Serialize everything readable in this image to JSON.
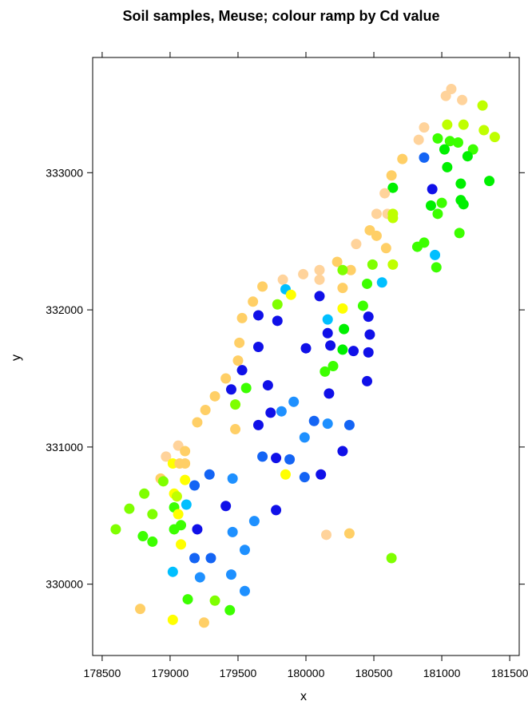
{
  "chart_data": {
    "type": "scatter",
    "title": "Soil samples, Meuse; colour ramp by Cd value",
    "xlabel": "x",
    "ylabel": "y",
    "xlim": [
      178430,
      181570
    ],
    "ylim": [
      329480,
      333840
    ],
    "x_ticks": [
      178500,
      179000,
      179500,
      180000,
      180500,
      181000,
      181500
    ],
    "y_ticks": [
      330000,
      331000,
      332000,
      333000
    ],
    "x_tick_labels": [
      "178500",
      "179000",
      "179500",
      "180000",
      "180500",
      "181000",
      "181500"
    ],
    "y_tick_labels": [
      "330000",
      "331000",
      "332000",
      "333000"
    ],
    "grid": false,
    "legend": "none",
    "points": [
      {
        "x": 181070,
        "y": 333610,
        "color": "#FFD39B"
      },
      {
        "x": 181030,
        "y": 333560,
        "color": "#FFD39B"
      },
      {
        "x": 181150,
        "y": 333530,
        "color": "#FFD39B"
      },
      {
        "x": 181300,
        "y": 333490,
        "color": "#BFFF00"
      },
      {
        "x": 180870,
        "y": 333330,
        "color": "#FFD39B"
      },
      {
        "x": 181040,
        "y": 333350,
        "color": "#BFFF00"
      },
      {
        "x": 181160,
        "y": 333350,
        "color": "#BFFF00"
      },
      {
        "x": 181310,
        "y": 333310,
        "color": "#BFFF00"
      },
      {
        "x": 180830,
        "y": 333240,
        "color": "#FFD39B"
      },
      {
        "x": 180970,
        "y": 333250,
        "color": "#3CFF00"
      },
      {
        "x": 181060,
        "y": 333230,
        "color": "#3CFF00"
      },
      {
        "x": 181120,
        "y": 333220,
        "color": "#3CFF00"
      },
      {
        "x": 181390,
        "y": 333260,
        "color": "#BFFF00"
      },
      {
        "x": 180710,
        "y": 333100,
        "color": "#FFCF66"
      },
      {
        "x": 180870,
        "y": 333110,
        "color": "#1464F4"
      },
      {
        "x": 181020,
        "y": 333170,
        "color": "#00F000"
      },
      {
        "x": 181230,
        "y": 333170,
        "color": "#3CFF00"
      },
      {
        "x": 181190,
        "y": 333120,
        "color": "#00F000"
      },
      {
        "x": 181040,
        "y": 333040,
        "color": "#00F000"
      },
      {
        "x": 181350,
        "y": 332940,
        "color": "#00F000"
      },
      {
        "x": 180630,
        "y": 332980,
        "color": "#FFCF66"
      },
      {
        "x": 180640,
        "y": 332890,
        "color": "#00F000"
      },
      {
        "x": 180930,
        "y": 332880,
        "color": "#1010E8"
      },
      {
        "x": 181140,
        "y": 332920,
        "color": "#00F000"
      },
      {
        "x": 180580,
        "y": 332850,
        "color": "#FFD39B"
      },
      {
        "x": 181140,
        "y": 332800,
        "color": "#00F000"
      },
      {
        "x": 180520,
        "y": 332700,
        "color": "#FFD39B"
      },
      {
        "x": 180600,
        "y": 332700,
        "color": "#FFD39B"
      },
      {
        "x": 180640,
        "y": 332700,
        "color": "#BFFF00"
      },
      {
        "x": 180640,
        "y": 332670,
        "color": "#BFFF00"
      },
      {
        "x": 180920,
        "y": 332760,
        "color": "#00F000"
      },
      {
        "x": 181000,
        "y": 332780,
        "color": "#3CFF00"
      },
      {
        "x": 181160,
        "y": 332770,
        "color": "#00F000"
      },
      {
        "x": 180970,
        "y": 332700,
        "color": "#3CFF00"
      },
      {
        "x": 180470,
        "y": 332580,
        "color": "#FFCF66"
      },
      {
        "x": 180520,
        "y": 332540,
        "color": "#FFCF66"
      },
      {
        "x": 181130,
        "y": 332560,
        "color": "#3CFF00"
      },
      {
        "x": 180370,
        "y": 332480,
        "color": "#FFD39B"
      },
      {
        "x": 180590,
        "y": 332450,
        "color": "#FFCF66"
      },
      {
        "x": 180870,
        "y": 332490,
        "color": "#3CFF00"
      },
      {
        "x": 180820,
        "y": 332460,
        "color": "#3CFF00"
      },
      {
        "x": 180950,
        "y": 332400,
        "color": "#00BFFF"
      },
      {
        "x": 180230,
        "y": 332350,
        "color": "#FFCF66"
      },
      {
        "x": 180100,
        "y": 332290,
        "color": "#FFD39B"
      },
      {
        "x": 180330,
        "y": 332290,
        "color": "#FFCF66"
      },
      {
        "x": 180270,
        "y": 332290,
        "color": "#7FFF00"
      },
      {
        "x": 180490,
        "y": 332330,
        "color": "#7FFF00"
      },
      {
        "x": 180640,
        "y": 332330,
        "color": "#BFFF00"
      },
      {
        "x": 180960,
        "y": 332310,
        "color": "#3CFF00"
      },
      {
        "x": 179980,
        "y": 332260,
        "color": "#FFD39B"
      },
      {
        "x": 179830,
        "y": 332220,
        "color": "#FFD39B"
      },
      {
        "x": 180100,
        "y": 332220,
        "color": "#FFD39B"
      },
      {
        "x": 180270,
        "y": 332160,
        "color": "#FFCF66"
      },
      {
        "x": 180450,
        "y": 332190,
        "color": "#3CFF00"
      },
      {
        "x": 180560,
        "y": 332200,
        "color": "#00BFFF"
      },
      {
        "x": 179680,
        "y": 332170,
        "color": "#FFCF66"
      },
      {
        "x": 179850,
        "y": 332150,
        "color": "#00BFFF"
      },
      {
        "x": 179890,
        "y": 332110,
        "color": "#FFFF00"
      },
      {
        "x": 180100,
        "y": 332100,
        "color": "#1010E8"
      },
      {
        "x": 179610,
        "y": 332060,
        "color": "#FFCF66"
      },
      {
        "x": 179790,
        "y": 332040,
        "color": "#7FFF00"
      },
      {
        "x": 180270,
        "y": 332010,
        "color": "#FFFF00"
      },
      {
        "x": 180420,
        "y": 332030,
        "color": "#3CFF00"
      },
      {
        "x": 179530,
        "y": 331940,
        "color": "#FFCF66"
      },
      {
        "x": 179650,
        "y": 331960,
        "color": "#1010E8"
      },
      {
        "x": 179790,
        "y": 331920,
        "color": "#1010E8"
      },
      {
        "x": 180160,
        "y": 331930,
        "color": "#00BFFF"
      },
      {
        "x": 180460,
        "y": 331950,
        "color": "#1010E8"
      },
      {
        "x": 180160,
        "y": 331830,
        "color": "#1010E8"
      },
      {
        "x": 180280,
        "y": 331860,
        "color": "#00F000"
      },
      {
        "x": 180470,
        "y": 331820,
        "color": "#1010E8"
      },
      {
        "x": 179510,
        "y": 331760,
        "color": "#FFCF66"
      },
      {
        "x": 179650,
        "y": 331730,
        "color": "#1010E8"
      },
      {
        "x": 180000,
        "y": 331720,
        "color": "#1010E8"
      },
      {
        "x": 180180,
        "y": 331740,
        "color": "#1010E8"
      },
      {
        "x": 180350,
        "y": 331700,
        "color": "#1010E8"
      },
      {
        "x": 180270,
        "y": 331710,
        "color": "#00F000"
      },
      {
        "x": 180460,
        "y": 331690,
        "color": "#1010E8"
      },
      {
        "x": 179500,
        "y": 331630,
        "color": "#FFCF66"
      },
      {
        "x": 180200,
        "y": 331590,
        "color": "#3CFF00"
      },
      {
        "x": 179530,
        "y": 331560,
        "color": "#1010E8"
      },
      {
        "x": 180140,
        "y": 331550,
        "color": "#3CFF00"
      },
      {
        "x": 179410,
        "y": 331500,
        "color": "#FFCF66"
      },
      {
        "x": 180450,
        "y": 331480,
        "color": "#1010E8"
      },
      {
        "x": 179450,
        "y": 331420,
        "color": "#1010E8"
      },
      {
        "x": 179560,
        "y": 331430,
        "color": "#3CFF00"
      },
      {
        "x": 179720,
        "y": 331450,
        "color": "#1010E8"
      },
      {
        "x": 180170,
        "y": 331390,
        "color": "#1010E8"
      },
      {
        "x": 179330,
        "y": 331370,
        "color": "#FFCF66"
      },
      {
        "x": 179480,
        "y": 331310,
        "color": "#7FFF00"
      },
      {
        "x": 179910,
        "y": 331330,
        "color": "#1E90FF"
      },
      {
        "x": 179260,
        "y": 331270,
        "color": "#FFCF66"
      },
      {
        "x": 179740,
        "y": 331250,
        "color": "#1010E8"
      },
      {
        "x": 179820,
        "y": 331260,
        "color": "#1E90FF"
      },
      {
        "x": 180060,
        "y": 331190,
        "color": "#1464F4"
      },
      {
        "x": 179200,
        "y": 331180,
        "color": "#FFCF66"
      },
      {
        "x": 179650,
        "y": 331160,
        "color": "#1010E8"
      },
      {
        "x": 180160,
        "y": 331170,
        "color": "#1E90FF"
      },
      {
        "x": 180320,
        "y": 331160,
        "color": "#1464F4"
      },
      {
        "x": 179480,
        "y": 331130,
        "color": "#FFCF66"
      },
      {
        "x": 179990,
        "y": 331070,
        "color": "#1E90FF"
      },
      {
        "x": 179060,
        "y": 331010,
        "color": "#FFD39B"
      },
      {
        "x": 179110,
        "y": 330970,
        "color": "#FFCF66"
      },
      {
        "x": 180270,
        "y": 330970,
        "color": "#1010E8"
      },
      {
        "x": 178970,
        "y": 330930,
        "color": "#FFD39B"
      },
      {
        "x": 179680,
        "y": 330930,
        "color": "#1464F4"
      },
      {
        "x": 179780,
        "y": 330920,
        "color": "#1010E8"
      },
      {
        "x": 179880,
        "y": 330910,
        "color": "#1464F4"
      },
      {
        "x": 179020,
        "y": 330880,
        "color": "#FFFF00"
      },
      {
        "x": 179070,
        "y": 330880,
        "color": "#FFCF66"
      },
      {
        "x": 179110,
        "y": 330880,
        "color": "#FFCF66"
      },
      {
        "x": 179850,
        "y": 330800,
        "color": "#FFFF00"
      },
      {
        "x": 179290,
        "y": 330800,
        "color": "#1464F4"
      },
      {
        "x": 179990,
        "y": 330780,
        "color": "#1464F4"
      },
      {
        "x": 180110,
        "y": 330800,
        "color": "#1010E8"
      },
      {
        "x": 178930,
        "y": 330770,
        "color": "#FFCF66"
      },
      {
        "x": 179460,
        "y": 330770,
        "color": "#1E90FF"
      },
      {
        "x": 179110,
        "y": 330760,
        "color": "#FFFF00"
      },
      {
        "x": 178950,
        "y": 330750,
        "color": "#7FFF00"
      },
      {
        "x": 179180,
        "y": 330720,
        "color": "#1464F4"
      },
      {
        "x": 178810,
        "y": 330660,
        "color": "#7FFF00"
      },
      {
        "x": 179030,
        "y": 330660,
        "color": "#FFFF00"
      },
      {
        "x": 179050,
        "y": 330640,
        "color": "#BFFF00"
      },
      {
        "x": 179120,
        "y": 330580,
        "color": "#00BFFF"
      },
      {
        "x": 179410,
        "y": 330570,
        "color": "#1010E8"
      },
      {
        "x": 178700,
        "y": 330550,
        "color": "#7FFF00"
      },
      {
        "x": 179030,
        "y": 330560,
        "color": "#3CFF00"
      },
      {
        "x": 179780,
        "y": 330540,
        "color": "#1010E8"
      },
      {
        "x": 178870,
        "y": 330510,
        "color": "#7FFF00"
      },
      {
        "x": 179060,
        "y": 330510,
        "color": "#FFFF00"
      },
      {
        "x": 179620,
        "y": 330460,
        "color": "#1E90FF"
      },
      {
        "x": 179080,
        "y": 330430,
        "color": "#3CFF00"
      },
      {
        "x": 178600,
        "y": 330400,
        "color": "#7FFF00"
      },
      {
        "x": 179030,
        "y": 330400,
        "color": "#3CFF00"
      },
      {
        "x": 179200,
        "y": 330400,
        "color": "#1010E8"
      },
      {
        "x": 179460,
        "y": 330380,
        "color": "#1E90FF"
      },
      {
        "x": 178800,
        "y": 330350,
        "color": "#3CFF00"
      },
      {
        "x": 180150,
        "y": 330360,
        "color": "#FFD39B"
      },
      {
        "x": 180320,
        "y": 330370,
        "color": "#FFCF66"
      },
      {
        "x": 178870,
        "y": 330310,
        "color": "#3CFF00"
      },
      {
        "x": 179080,
        "y": 330290,
        "color": "#FFFF00"
      },
      {
        "x": 179550,
        "y": 330250,
        "color": "#1E90FF"
      },
      {
        "x": 179180,
        "y": 330190,
        "color": "#1464F4"
      },
      {
        "x": 179300,
        "y": 330190,
        "color": "#1464F4"
      },
      {
        "x": 180630,
        "y": 330190,
        "color": "#7FFF00"
      },
      {
        "x": 179020,
        "y": 330090,
        "color": "#00BFFF"
      },
      {
        "x": 179220,
        "y": 330050,
        "color": "#1E90FF"
      },
      {
        "x": 179450,
        "y": 330070,
        "color": "#1E90FF"
      },
      {
        "x": 179550,
        "y": 329950,
        "color": "#1E90FF"
      },
      {
        "x": 179130,
        "y": 329890,
        "color": "#3CFF00"
      },
      {
        "x": 179330,
        "y": 329880,
        "color": "#7FFF00"
      },
      {
        "x": 178780,
        "y": 329820,
        "color": "#FFCF66"
      },
      {
        "x": 179440,
        "y": 329810,
        "color": "#3CFF00"
      },
      {
        "x": 179020,
        "y": 329740,
        "color": "#FFFF00"
      },
      {
        "x": 179250,
        "y": 329720,
        "color": "#FFCF66"
      }
    ]
  }
}
